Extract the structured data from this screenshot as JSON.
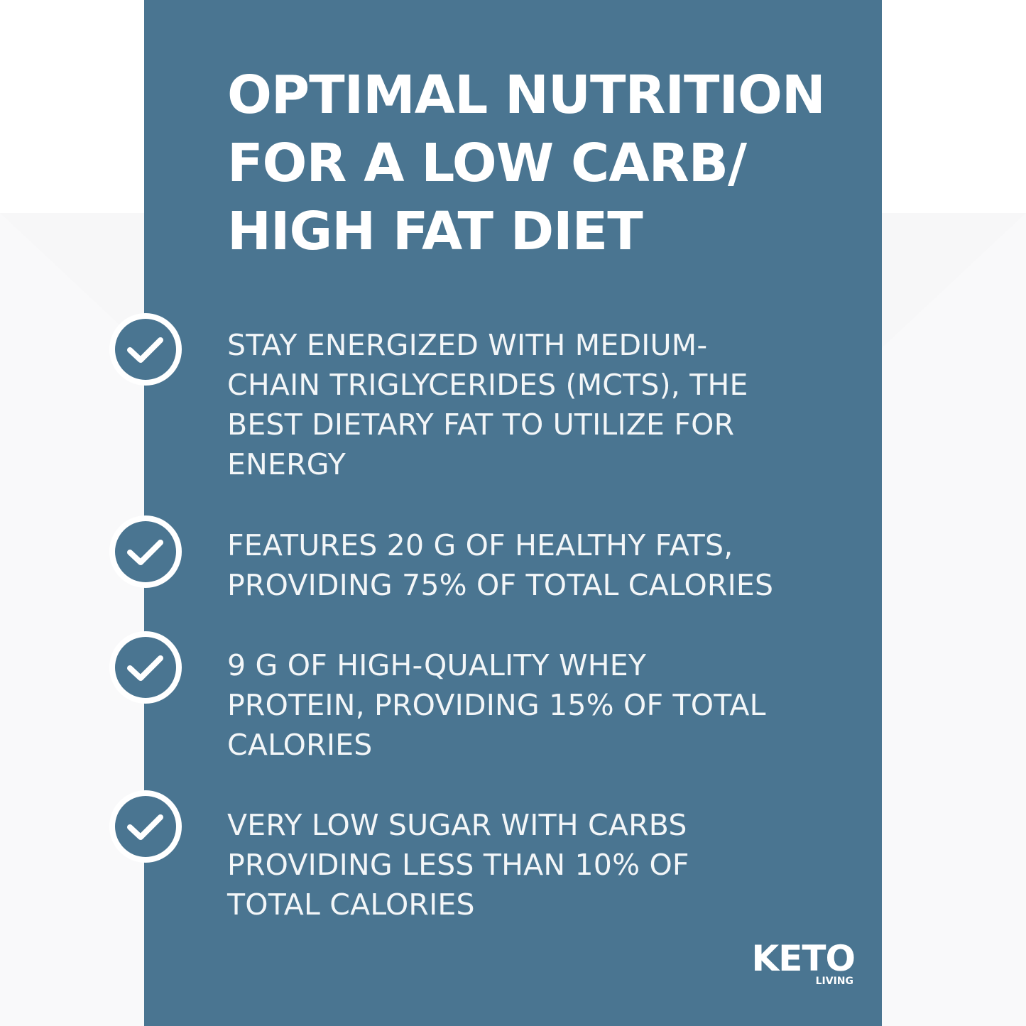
{
  "headline": "OPTIMAL NUTRITION\nFOR A LOW CARB/\nHIGH FAT DIET",
  "benefits": [
    {
      "text": "STAY ENERGIZED WITH MEDIUM-\nCHAIN TRIGLYCERIDES (MCTS), THE\nBEST DIETARY FAT TO UTILIZE FOR\nENERGY",
      "icon": "check-circle-icon"
    },
    {
      "text": "FEATURES 20 G OF HEALTHY FATS,\nPROVIDING 75% OF TOTAL CALORIES",
      "icon": "check-circle-icon"
    },
    {
      "text": "9 G OF HIGH-QUALITY WHEY\nPROTEIN, PROVIDING 15% OF TOTAL\nCALORIES",
      "icon": "check-circle-icon"
    },
    {
      "text": "VERY LOW SUGAR WITH CARBS\nPROVIDING LESS THAN 10% OF\nTOTAL CALORIES",
      "icon": "check-circle-icon"
    }
  ],
  "logo": {
    "main": "KETO",
    "sub": "LIVING"
  },
  "colors": {
    "panel": "#4a7591",
    "icon_fill": "#4a7591",
    "text": "#ffffff",
    "background": "#ffffff"
  }
}
